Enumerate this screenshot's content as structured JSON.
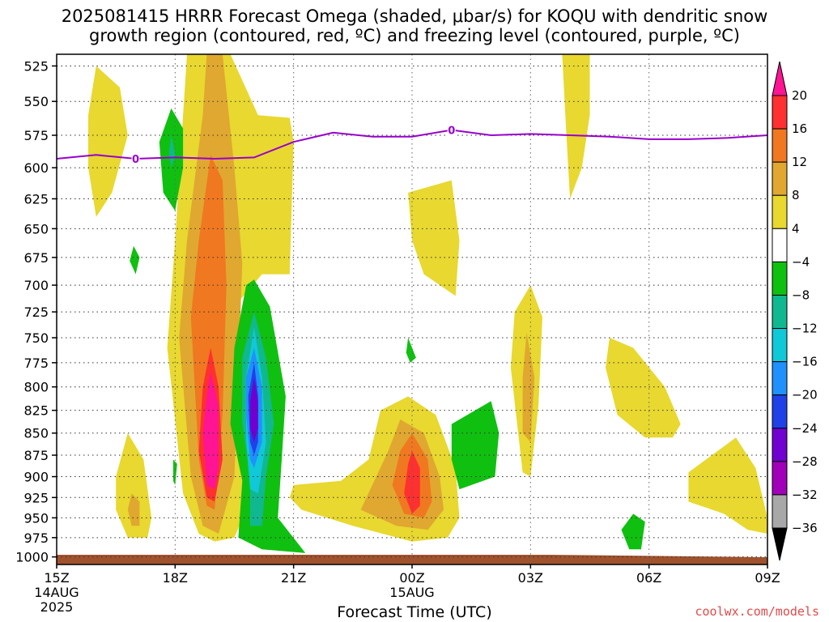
{
  "title_line1": "2025081415 HRRR Forecast Omega (shaded, μbar/s) for KOQU with dendritic snow",
  "title_line2": "growth region (contoured, red, ºC) and freezing level (contoured, purple, ºC)",
  "credit": "coolwx.com/models",
  "chart_data": {
    "type": "heatmap",
    "xlabel": "Forecast Time (UTC)",
    "ylabel": "",
    "y_scale": "pressure_hPa_inverted",
    "ylim": [
      1010,
      517
    ],
    "y_ticks": [
      525,
      550,
      575,
      600,
      625,
      650,
      675,
      700,
      725,
      750,
      775,
      800,
      825,
      850,
      875,
      900,
      925,
      950,
      975,
      1000
    ],
    "x_ticks": [
      {
        "hour": 15,
        "label": "15Z",
        "sub1": "14AUG",
        "sub2": "2025"
      },
      {
        "hour": 18,
        "label": "18Z",
        "sub1": "",
        "sub2": ""
      },
      {
        "hour": 21,
        "label": "21Z",
        "sub1": "",
        "sub2": ""
      },
      {
        "hour": 24,
        "label": "00Z",
        "sub1": "15AUG",
        "sub2": ""
      },
      {
        "hour": 27,
        "label": "03Z",
        "sub1": "",
        "sub2": ""
      },
      {
        "hour": 30,
        "label": "06Z",
        "sub1": "",
        "sub2": ""
      },
      {
        "hour": 33,
        "label": "09Z",
        "sub1": "",
        "sub2": ""
      }
    ],
    "grid": "dotted",
    "colorbar": {
      "labels": [
        "20",
        "16",
        "12",
        "8",
        "4",
        "−4",
        "−8",
        "−12",
        "−16",
        "−20",
        "−24",
        "−28",
        "−32",
        "−36"
      ],
      "colors": [
        "#ff1493",
        "#ff3030",
        "#f07820",
        "#e0a830",
        "#e8d830",
        "#ffffff",
        "#10c010",
        "#10b890",
        "#10c8d8",
        "#2090ff",
        "#2040e8",
        "#7000d0",
        "#a000b8",
        "#a8a8a8",
        "#000000"
      ]
    },
    "freezing_level": {
      "color": "#9900cc",
      "label": "0",
      "points": [
        [
          15,
          593
        ],
        [
          16,
          590
        ],
        [
          17,
          593
        ],
        [
          18,
          592
        ],
        [
          19,
          593
        ],
        [
          20,
          592
        ],
        [
          21,
          580
        ],
        [
          22,
          573
        ],
        [
          23,
          576
        ],
        [
          24,
          576
        ],
        [
          25,
          571
        ],
        [
          26,
          575
        ],
        [
          27,
          574
        ],
        [
          28,
          575
        ],
        [
          29,
          576
        ],
        [
          30,
          578
        ],
        [
          31,
          578
        ],
        [
          32,
          577
        ],
        [
          33,
          575
        ]
      ],
      "label_positions": [
        [
          17,
          593
        ],
        [
          25,
          571
        ]
      ]
    },
    "omega_regions": [
      {
        "level": "4",
        "color": "#e8d830",
        "polygon": [
          [
            18.3,
            517
          ],
          [
            19.4,
            517
          ],
          [
            20.1,
            560
          ],
          [
            20.9,
            562
          ],
          [
            21.0,
            580
          ],
          [
            20.9,
            690
          ],
          [
            20.2,
            690
          ],
          [
            19.5,
            720
          ],
          [
            19.6,
            830
          ],
          [
            19.8,
            940
          ],
          [
            19.5,
            975
          ],
          [
            19.0,
            980
          ],
          [
            18.6,
            970
          ],
          [
            18.2,
            920
          ],
          [
            17.8,
            760
          ],
          [
            18.0,
            660
          ],
          [
            18.2,
            560
          ]
        ]
      },
      {
        "level": "8",
        "color": "#e0a830",
        "polygon": [
          [
            18.8,
            517
          ],
          [
            19.2,
            517
          ],
          [
            19.5,
            600
          ],
          [
            19.7,
            680
          ],
          [
            19.5,
            900
          ],
          [
            19.1,
            970
          ],
          [
            18.7,
            960
          ],
          [
            18.4,
            900
          ],
          [
            18.1,
            750
          ],
          [
            18.3,
            660
          ],
          [
            18.7,
            560
          ]
        ]
      },
      {
        "level": "12",
        "color": "#f07820",
        "polygon": [
          [
            18.9,
            590
          ],
          [
            19.2,
            610
          ],
          [
            19.3,
            700
          ],
          [
            19.2,
            830
          ],
          [
            19.0,
            940
          ],
          [
            18.8,
            935
          ],
          [
            18.6,
            880
          ],
          [
            18.4,
            730
          ],
          [
            18.6,
            660
          ]
        ]
      },
      {
        "level": "16",
        "color": "#ff3030",
        "polygon": [
          [
            18.9,
            760
          ],
          [
            19.1,
            800
          ],
          [
            19.2,
            880
          ],
          [
            19.0,
            930
          ],
          [
            18.8,
            925
          ],
          [
            18.6,
            870
          ],
          [
            18.7,
            800
          ]
        ]
      },
      {
        "level": "20",
        "color": "#ff1493",
        "polygon": [
          [
            18.9,
            785
          ],
          [
            19.1,
            820
          ],
          [
            19.1,
            890
          ],
          [
            19.0,
            915
          ],
          [
            18.8,
            910
          ],
          [
            18.7,
            850
          ],
          [
            18.8,
            810
          ]
        ]
      },
      {
        "level": "4",
        "color": "#e8d830",
        "polygon": [
          [
            16.0,
            525
          ],
          [
            16.6,
            540
          ],
          [
            16.8,
            575
          ],
          [
            16.4,
            620
          ],
          [
            16.0,
            640
          ],
          [
            15.8,
            600
          ],
          [
            15.8,
            560
          ]
        ]
      },
      {
        "level": "4",
        "color": "#e8d830",
        "polygon": [
          [
            16.8,
            850
          ],
          [
            17.2,
            880
          ],
          [
            17.4,
            950
          ],
          [
            17.3,
            975
          ],
          [
            16.8,
            975
          ],
          [
            16.5,
            940
          ],
          [
            16.5,
            900
          ]
        ]
      },
      {
        "level": "8",
        "color": "#e0a830",
        "polygon": [
          [
            16.9,
            920
          ],
          [
            17.1,
            930
          ],
          [
            17.1,
            960
          ],
          [
            16.9,
            960
          ],
          [
            16.8,
            940
          ]
        ]
      },
      {
        "level": "4",
        "color": "#e8d830",
        "polygon": [
          [
            21.0,
            910
          ],
          [
            22.2,
            905
          ],
          [
            22.9,
            880
          ],
          [
            23.2,
            825
          ],
          [
            23.9,
            810
          ],
          [
            24.6,
            830
          ],
          [
            25.1,
            890
          ],
          [
            25.2,
            950
          ],
          [
            24.9,
            975
          ],
          [
            24.0,
            980
          ],
          [
            22.5,
            960
          ],
          [
            21.2,
            940
          ],
          [
            20.9,
            925
          ]
        ]
      },
      {
        "level": "8",
        "color": "#e0a830",
        "polygon": [
          [
            23.7,
            835
          ],
          [
            24.3,
            850
          ],
          [
            24.7,
            900
          ],
          [
            24.8,
            940
          ],
          [
            24.4,
            965
          ],
          [
            23.6,
            960
          ],
          [
            22.7,
            940
          ],
          [
            23.4,
            870
          ]
        ]
      },
      {
        "level": "12",
        "color": "#f07820",
        "polygon": [
          [
            24.0,
            850
          ],
          [
            24.4,
            880
          ],
          [
            24.5,
            930
          ],
          [
            24.3,
            950
          ],
          [
            23.8,
            945
          ],
          [
            23.5,
            910
          ],
          [
            23.7,
            870
          ]
        ]
      },
      {
        "level": "16",
        "color": "#ff3030",
        "polygon": [
          [
            24.0,
            870
          ],
          [
            24.2,
            890
          ],
          [
            24.2,
            935
          ],
          [
            24.0,
            945
          ],
          [
            23.8,
            920
          ],
          [
            23.9,
            885
          ]
        ]
      },
      {
        "level": "4",
        "color": "#e8d830",
        "polygon": [
          [
            23.9,
            620
          ],
          [
            25.0,
            610
          ],
          [
            25.2,
            660
          ],
          [
            25.1,
            710
          ],
          [
            24.3,
            690
          ],
          [
            24.0,
            660
          ]
        ]
      },
      {
        "level": "4",
        "color": "#e8d830",
        "polygon": [
          [
            27.0,
            700
          ],
          [
            27.3,
            730
          ],
          [
            27.2,
            820
          ],
          [
            27.0,
            900
          ],
          [
            26.8,
            895
          ],
          [
            26.5,
            780
          ],
          [
            26.6,
            725
          ]
        ]
      },
      {
        "level": "8",
        "color": "#e0a830",
        "polygon": [
          [
            26.9,
            745
          ],
          [
            27.1,
            790
          ],
          [
            27.0,
            860
          ],
          [
            26.8,
            850
          ],
          [
            26.8,
            790
          ]
        ]
      },
      {
        "level": "4",
        "color": "#e8d830",
        "polygon": [
          [
            27.8,
            517
          ],
          [
            28.5,
            517
          ],
          [
            28.5,
            560
          ],
          [
            28.3,
            600
          ],
          [
            28.0,
            625
          ],
          [
            27.9,
            570
          ]
        ]
      },
      {
        "level": "4",
        "color": "#e8d830",
        "polygon": [
          [
            29.0,
            750
          ],
          [
            29.6,
            760
          ],
          [
            30.4,
            800
          ],
          [
            30.8,
            840
          ],
          [
            30.6,
            855
          ],
          [
            29.9,
            855
          ],
          [
            29.2,
            830
          ],
          [
            28.9,
            780
          ]
        ]
      },
      {
        "level": "4",
        "color": "#e8d830",
        "polygon": [
          [
            32.2,
            855
          ],
          [
            32.7,
            890
          ],
          [
            33.0,
            950
          ],
          [
            33.0,
            970
          ],
          [
            32.5,
            965
          ],
          [
            31.9,
            945
          ],
          [
            31.0,
            930
          ],
          [
            31.0,
            895
          ]
        ]
      },
      {
        "level": "-4",
        "color": "#10c010",
        "polygon": [
          [
            20.0,
            695
          ],
          [
            20.4,
            720
          ],
          [
            20.8,
            810
          ],
          [
            20.7,
            880
          ],
          [
            20.6,
            950
          ],
          [
            21.3,
            995
          ],
          [
            20.2,
            990
          ],
          [
            19.6,
            975
          ],
          [
            19.7,
            905
          ],
          [
            19.4,
            840
          ],
          [
            19.5,
            760
          ],
          [
            19.8,
            700
          ]
        ]
      },
      {
        "level": "-8",
        "color": "#10b890",
        "polygon": [
          [
            20.0,
            725
          ],
          [
            20.3,
            770
          ],
          [
            20.5,
            840
          ],
          [
            20.3,
            900
          ],
          [
            20.2,
            960
          ],
          [
            19.9,
            960
          ],
          [
            19.9,
            900
          ],
          [
            19.7,
            840
          ],
          [
            19.7,
            770
          ]
        ]
      },
      {
        "level": "-12",
        "color": "#10c8d8",
        "polygon": [
          [
            20.0,
            740
          ],
          [
            20.2,
            790
          ],
          [
            20.3,
            860
          ],
          [
            20.1,
            920
          ],
          [
            19.9,
            915
          ],
          [
            19.8,
            860
          ],
          [
            19.8,
            790
          ]
        ]
      },
      {
        "level": "-16",
        "color": "#2090ff",
        "polygon": [
          [
            20.0,
            760
          ],
          [
            20.2,
            800
          ],
          [
            20.2,
            860
          ],
          [
            20.0,
            890
          ],
          [
            19.9,
            880
          ],
          [
            19.8,
            830
          ],
          [
            19.8,
            790
          ]
        ]
      },
      {
        "level": "-20",
        "color": "#2040e8",
        "polygon": [
          [
            20.0,
            775
          ],
          [
            20.1,
            810
          ],
          [
            20.1,
            860
          ],
          [
            20.0,
            875
          ],
          [
            19.9,
            860
          ],
          [
            19.85,
            810
          ]
        ]
      },
      {
        "level": "-24",
        "color": "#7000d0",
        "polygon": [
          [
            20.0,
            790
          ],
          [
            20.1,
            815
          ],
          [
            20.1,
            845
          ],
          [
            20.0,
            860
          ],
          [
            19.9,
            845
          ],
          [
            19.9,
            815
          ]
        ]
      },
      {
        "level": "-4",
        "color": "#10c010",
        "polygon": [
          [
            17.9,
            555
          ],
          [
            18.2,
            570
          ],
          [
            18.2,
            600
          ],
          [
            18.0,
            635
          ],
          [
            17.7,
            620
          ],
          [
            17.6,
            580
          ]
        ]
      },
      {
        "level": "-8",
        "color": "#10b890",
        "polygon": [
          [
            17.9,
            575
          ],
          [
            18.0,
            590
          ],
          [
            17.9,
            600
          ],
          [
            17.85,
            588
          ]
        ]
      },
      {
        "level": "-4",
        "color": "#10c010",
        "polygon": [
          [
            16.95,
            665
          ],
          [
            17.1,
            675
          ],
          [
            17.0,
            690
          ],
          [
            16.85,
            678
          ]
        ]
      },
      {
        "level": "-4",
        "color": "#10c010",
        "polygon": [
          [
            23.9,
            750
          ],
          [
            24.1,
            770
          ],
          [
            23.95,
            775
          ],
          [
            23.85,
            765
          ]
        ]
      },
      {
        "level": "-4",
        "color": "#10c010",
        "polygon": [
          [
            25.0,
            840
          ],
          [
            26.0,
            815
          ],
          [
            26.2,
            850
          ],
          [
            26.1,
            900
          ],
          [
            25.2,
            915
          ],
          [
            25.0,
            880
          ]
        ]
      },
      {
        "level": "-4",
        "color": "#10c010",
        "polygon": [
          [
            29.6,
            945
          ],
          [
            29.9,
            955
          ],
          [
            29.8,
            990
          ],
          [
            29.5,
            990
          ],
          [
            29.3,
            965
          ]
        ]
      },
      {
        "level": "-4",
        "color": "#10c010",
        "polygon": [
          [
            17.95,
            880
          ],
          [
            18.05,
            885
          ],
          [
            18.0,
            910
          ],
          [
            17.95,
            905
          ]
        ]
      }
    ]
  }
}
